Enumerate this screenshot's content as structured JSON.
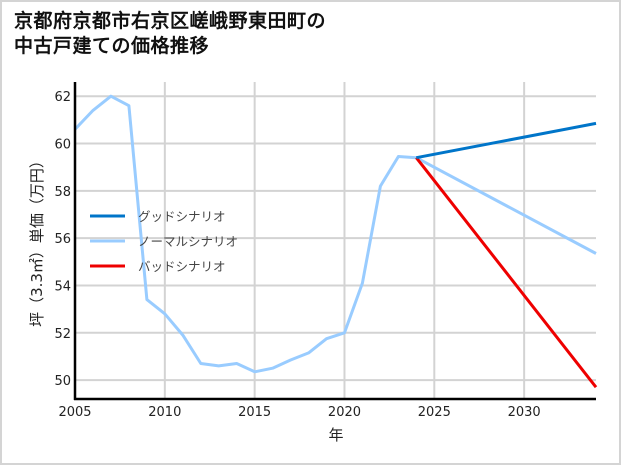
{
  "title_lines": [
    "京都府京都市右京区嵯峨野東田町の",
    "中古戸建ての価格推移"
  ],
  "colors": {
    "good": "#0075c9",
    "normal": "#99ccff",
    "bad": "#ee0000",
    "grid": "#d3d3d3",
    "axis": "#000000"
  },
  "chart_data": {
    "type": "line",
    "title": "京都府京都市右京区嵯峨野東田町の中古戸建ての価格推移",
    "xlabel": "年",
    "ylabel": "坪（3.3㎡）単価（万円）",
    "xlim": [
      2005,
      2034
    ],
    "ylim": [
      49.2,
      62.6
    ],
    "x_ticks": [
      2005,
      2010,
      2015,
      2020,
      2025,
      2030
    ],
    "y_ticks": [
      50,
      52,
      54,
      56,
      58,
      60,
      62
    ],
    "grid": true,
    "legend_position": "center-left",
    "series": [
      {
        "name": "グッドシナリオ",
        "color": "#0075c9",
        "x": [
          2024,
          2034
        ],
        "values": [
          59.4,
          60.85
        ]
      },
      {
        "name": "ノーマルシナリオ",
        "color": "#99ccff",
        "x": [
          2005,
          2006,
          2007,
          2008,
          2009,
          2010,
          2011,
          2012,
          2013,
          2014,
          2015,
          2016,
          2017,
          2018,
          2019,
          2020,
          2021,
          2022,
          2023,
          2024,
          2034
        ],
        "values": [
          60.6,
          61.4,
          62.0,
          61.6,
          53.4,
          52.8,
          51.9,
          50.7,
          50.6,
          50.7,
          50.35,
          50.5,
          50.85,
          51.15,
          51.75,
          52.0,
          54.1,
          58.2,
          59.45,
          59.4,
          55.35
        ]
      },
      {
        "name": "バッドシナリオ",
        "color": "#ee0000",
        "x": [
          2024,
          2034
        ],
        "values": [
          59.4,
          49.7
        ]
      }
    ]
  }
}
